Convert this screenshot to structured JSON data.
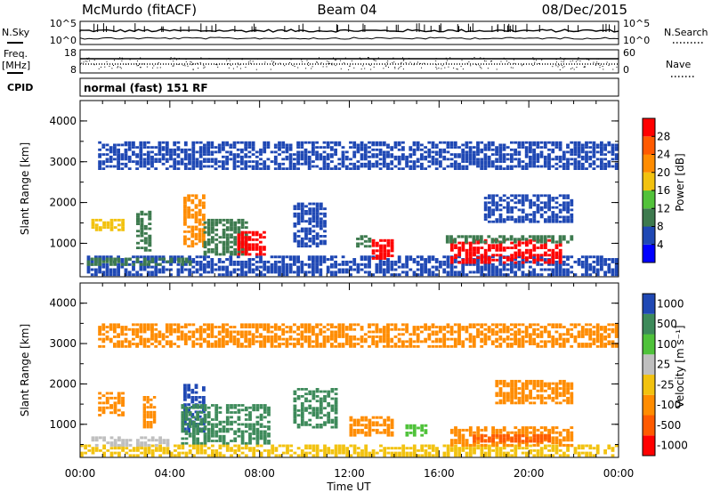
{
  "header": {
    "station": "McMurdo (fitACF)",
    "beam": "Beam 04",
    "date": "08/Dec/2015"
  },
  "noise_panel": {
    "left_label": "N.Sky",
    "right_label": "N.Search",
    "left_ticks": [
      "10^5",
      "10^0"
    ],
    "right_ticks": [
      "10^5",
      "10^0"
    ]
  },
  "freq_panel": {
    "left_label_1": "Freq.",
    "left_label_2": "[MHz]",
    "right_label": "Nave",
    "left_ticks": [
      "18",
      "8"
    ],
    "right_ticks": [
      "60",
      "0"
    ]
  },
  "cpid": {
    "label": "CPID",
    "value": "normal (fast) 151 RF"
  },
  "chart_data": [
    {
      "type": "heatmap",
      "name_panel": "power",
      "ylabel": "Slant Range [km]",
      "y_ticks": [
        "1000",
        "2000",
        "3000",
        "4000"
      ],
      "ylim": [
        180,
        4500
      ],
      "xlim": [
        "00:00",
        "00:00"
      ],
      "colorbar": {
        "label": "Power [dB]",
        "ticks": [
          "4",
          "8",
          "12",
          "16",
          "20",
          "24",
          "28"
        ],
        "colors": [
          "#0000ff",
          "#1f48b4",
          "#3d7a4e",
          "#52c23a",
          "#f2c20f",
          "#ff8c00",
          "#ff5a00",
          "#ff0000"
        ]
      },
      "regions": [
        {
          "t0": 0.3,
          "t1": 24.0,
          "r0": 200,
          "r1": 700,
          "color": "#1f48b4"
        },
        {
          "t0": 0.3,
          "t1": 5.0,
          "r0": 450,
          "r1": 650,
          "color": "#3d7a4e"
        },
        {
          "t0": 0.5,
          "t1": 2.0,
          "r0": 1300,
          "r1": 1600,
          "color": "#f2c20f"
        },
        {
          "t0": 2.5,
          "t1": 3.2,
          "r0": 800,
          "r1": 1800,
          "color": "#3d7a4e"
        },
        {
          "t0": 4.6,
          "t1": 5.6,
          "r0": 900,
          "r1": 2200,
          "color": "#ff8c00"
        },
        {
          "t0": 5.5,
          "t1": 7.5,
          "r0": 700,
          "r1": 1600,
          "color": "#3d7a4e"
        },
        {
          "t0": 7.0,
          "t1": 8.3,
          "r0": 700,
          "r1": 1300,
          "color": "#ff0000"
        },
        {
          "t0": 9.5,
          "t1": 11.0,
          "r0": 900,
          "r1": 2000,
          "color": "#1f48b4"
        },
        {
          "t0": 12.3,
          "t1": 13.0,
          "r0": 900,
          "r1": 1200,
          "color": "#3d7a4e"
        },
        {
          "t0": 13.0,
          "t1": 14.0,
          "r0": 600,
          "r1": 1100,
          "color": "#ff0000"
        },
        {
          "t0": 16.5,
          "t1": 21.5,
          "r0": 500,
          "r1": 1100,
          "color": "#ff0000"
        },
        {
          "t0": 16.3,
          "t1": 22.0,
          "r0": 1000,
          "r1": 1200,
          "color": "#3d7a4e"
        },
        {
          "t0": 0.8,
          "t1": 24.0,
          "r0": 2800,
          "r1": 3500,
          "color": "#1f48b4"
        },
        {
          "t0": 18.0,
          "t1": 22.0,
          "r0": 1500,
          "r1": 2200,
          "color": "#1f48b4"
        }
      ]
    },
    {
      "type": "heatmap",
      "name_panel": "velocity",
      "ylabel": "Slant Range [km]",
      "y_ticks": [
        "1000",
        "2000",
        "3000",
        "4000"
      ],
      "ylim": [
        180,
        4500
      ],
      "xlim": [
        "00:00",
        "00:00"
      ],
      "colorbar": {
        "label": "Velocity [m s⁻¹]",
        "ticks": [
          "1000",
          "500",
          "100",
          "25",
          "-25",
          "-100",
          "-500",
          "-1000"
        ],
        "colors": [
          "#1f48b4",
          "#3d8a5a",
          "#4fc23a",
          "#bfbfbf",
          "#f2c20f",
          "#ff8c00",
          "#ff5a00",
          "#ff0000"
        ]
      },
      "regions": [
        {
          "t0": 0.0,
          "t1": 24.0,
          "r0": 200,
          "r1": 500,
          "color": "#f2c20f"
        },
        {
          "t0": 0.5,
          "t1": 4.0,
          "r0": 450,
          "r1": 700,
          "color": "#bfbfbf"
        },
        {
          "t0": 0.8,
          "t1": 2.0,
          "r0": 1200,
          "r1": 1800,
          "color": "#ff8c00"
        },
        {
          "t0": 2.8,
          "t1": 3.4,
          "r0": 900,
          "r1": 1700,
          "color": "#ff8c00"
        },
        {
          "t0": 4.6,
          "t1": 5.6,
          "r0": 800,
          "r1": 2000,
          "color": "#1f48b4"
        },
        {
          "t0": 4.5,
          "t1": 8.5,
          "r0": 500,
          "r1": 1500,
          "color": "#3d8a5a"
        },
        {
          "t0": 9.5,
          "t1": 11.5,
          "r0": 900,
          "r1": 1900,
          "color": "#3d8a5a"
        },
        {
          "t0": 12.0,
          "t1": 14.0,
          "r0": 700,
          "r1": 1200,
          "color": "#ff8c00"
        },
        {
          "t0": 14.5,
          "t1": 15.5,
          "r0": 700,
          "r1": 1000,
          "color": "#4fc23a"
        },
        {
          "t0": 16.5,
          "t1": 22.0,
          "r0": 450,
          "r1": 950,
          "color": "#ff8c00"
        },
        {
          "t0": 17.5,
          "t1": 21.0,
          "r0": 550,
          "r1": 750,
          "color": "#ff5a00"
        },
        {
          "t0": 18.5,
          "t1": 22.0,
          "r0": 1500,
          "r1": 2100,
          "color": "#ff8c00"
        },
        {
          "t0": 0.8,
          "t1": 24.0,
          "r0": 2900,
          "r1": 3500,
          "color": "#ff8c00"
        }
      ]
    }
  ],
  "x_axis": {
    "ticks": [
      "00:00",
      "04:00",
      "08:00",
      "12:00",
      "16:00",
      "20:00",
      "00:00"
    ],
    "label": "Time UT"
  }
}
